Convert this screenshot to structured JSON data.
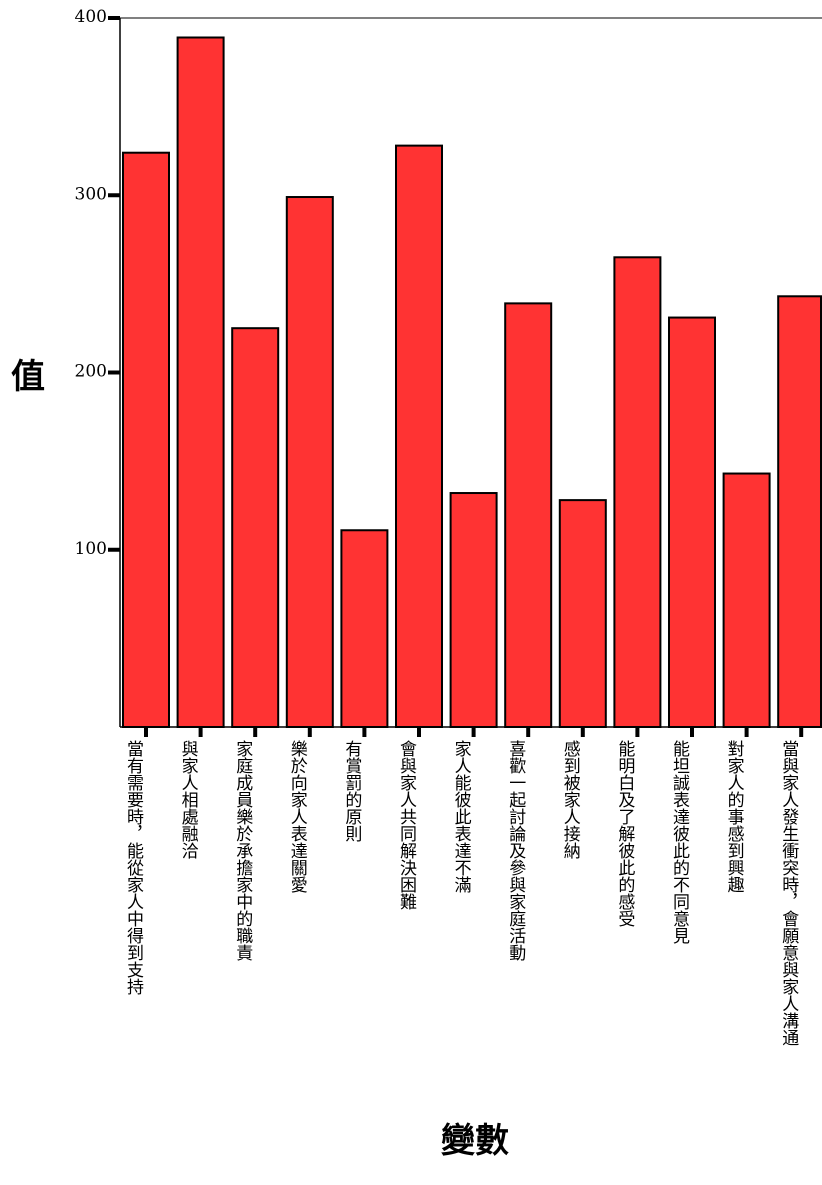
{
  "chart_data": {
    "type": "bar",
    "xlabel": "變數",
    "ylabel": "值",
    "ylim": [
      0,
      400
    ],
    "yticks": [
      100,
      200,
      300,
      400
    ],
    "bar_color": "#ff3333",
    "categories": [
      "當有需要時，能從家人中得到支持",
      "與家人相處融洽",
      "家庭成員樂於承擔家中的職責",
      "樂於向家人表達關愛",
      "有賞罰的原則",
      "會與家人共同解決困難",
      "家人能彼此表達不滿",
      "喜歡一起討論及參與家庭活動",
      "感到被家人接納",
      "能明白及了解彼此的感受",
      "能坦誠表達彼此的不同意見",
      "對家人的事感到興趣",
      "當與家人發生衝突時，會願意與家人溝通"
    ],
    "values": [
      324,
      389,
      225,
      299,
      111,
      328,
      132,
      239,
      128,
      265,
      231,
      143,
      243
    ]
  }
}
